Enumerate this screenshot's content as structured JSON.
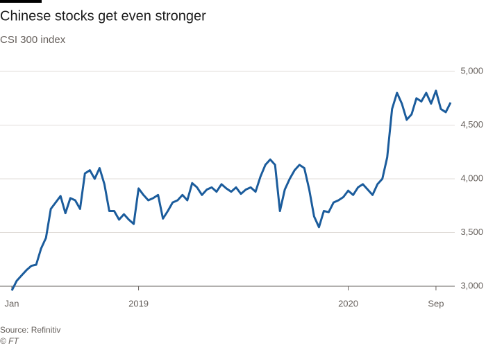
{
  "chart_data": {
    "type": "line",
    "title": "Chinese stocks get even stronger",
    "subtitle": "CSI 300 index",
    "source": "Source: Refinitiv",
    "credit": "© FT",
    "x": [
      0,
      1,
      2,
      3,
      4,
      5,
      6,
      7,
      8,
      9,
      10,
      11,
      12,
      13,
      14,
      15,
      16,
      17,
      18,
      19,
      20,
      21,
      22,
      23,
      24,
      25,
      26,
      27,
      28,
      29,
      30,
      31,
      32,
      33,
      34,
      35,
      36,
      37,
      38,
      39,
      40,
      41,
      42,
      43,
      44,
      45,
      46,
      47,
      48,
      49,
      50,
      51,
      52,
      53,
      54,
      55,
      56,
      57,
      58,
      59,
      60,
      61,
      62,
      63,
      64,
      65,
      66,
      67,
      68,
      69,
      70,
      71,
      72,
      73,
      74,
      75,
      76,
      77,
      78,
      79,
      80,
      81,
      82,
      83,
      84,
      85,
      86,
      87,
      88,
      89,
      90
    ],
    "series": [
      {
        "name": "CSI 300",
        "color": "#1b5c9c",
        "values": [
          2960,
          3050,
          3100,
          3150,
          3190,
          3200,
          3350,
          3450,
          3720,
          3780,
          3840,
          3680,
          3820,
          3800,
          3720,
          4050,
          4080,
          4000,
          4100,
          3950,
          3700,
          3700,
          3620,
          3670,
          3620,
          3580,
          3910,
          3850,
          3800,
          3820,
          3850,
          3630,
          3700,
          3780,
          3800,
          3850,
          3800,
          3960,
          3920,
          3850,
          3900,
          3920,
          3880,
          3950,
          3910,
          3880,
          3920,
          3860,
          3900,
          3920,
          3880,
          4020,
          4130,
          4180,
          4130,
          3700,
          3900,
          4000,
          4080,
          4130,
          4100,
          3900,
          3650,
          3550,
          3700,
          3690,
          3780,
          3800,
          3830,
          3890,
          3850,
          3920,
          3950,
          3900,
          3850,
          3950,
          4000,
          4200,
          4650,
          4800,
          4700,
          4550,
          4600,
          4750,
          4720,
          4800,
          4700,
          4820,
          4650,
          4620,
          4710
        ]
      }
    ],
    "xlim": [
      0,
      90
    ],
    "xticks": [
      {
        "value": 0,
        "label": "Jan"
      },
      {
        "value": 26,
        "label": "2019"
      },
      {
        "value": 69,
        "label": "2020"
      },
      {
        "value": 87,
        "label": "Sep"
      }
    ],
    "ylim": [
      3000,
      5000
    ],
    "yticks": [
      {
        "value": 3000,
        "label": "3,000"
      },
      {
        "value": 3500,
        "label": "3,500"
      },
      {
        "value": 4000,
        "label": "4,000"
      },
      {
        "value": 4500,
        "label": "4,500"
      },
      {
        "value": 5000,
        "label": "5,000"
      }
    ],
    "grid": true
  }
}
